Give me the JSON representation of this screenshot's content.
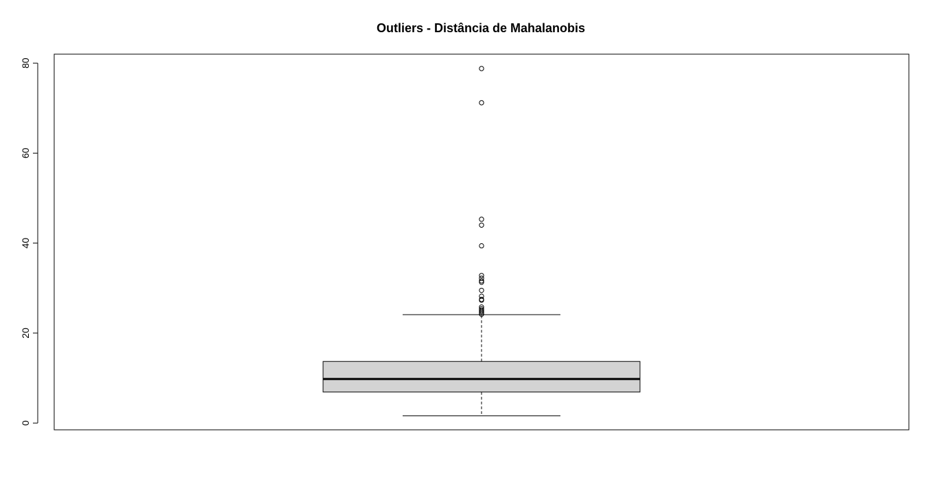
{
  "chart_data": {
    "type": "boxplot",
    "title": "Outliers - Distância de Mahalanobis",
    "xlabel": "",
    "ylabel": "",
    "ylim": [
      -1.5,
      82
    ],
    "yticks": [
      0,
      20,
      40,
      60,
      80
    ],
    "ytick_labels": [
      "0",
      "20",
      "40",
      "60",
      "80"
    ],
    "grid": false,
    "legend": "none",
    "box": {
      "min": 1.6,
      "q1": 6.9,
      "median": 9.8,
      "q3": 13.7,
      "max": 24.1
    },
    "outliers": [
      78.8,
      71.2,
      45.3,
      44.0,
      39.4,
      32.8,
      32.2,
      31.6,
      31.3,
      29.5,
      28.2,
      27.5,
      27.3,
      25.8,
      25.4,
      25.1,
      24.8,
      24.5,
      24.2
    ],
    "colors": {
      "box_fill": "#d3d3d3",
      "stroke": "#000000",
      "background": "#ffffff"
    }
  }
}
